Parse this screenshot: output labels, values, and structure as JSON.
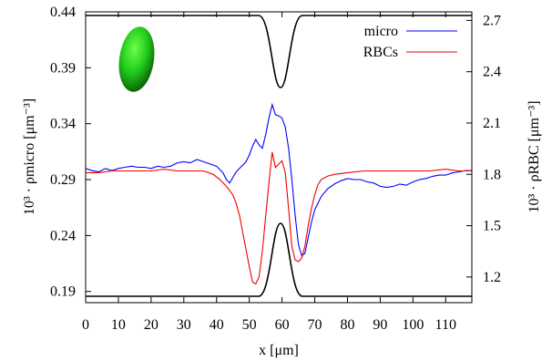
{
  "chart_data": {
    "type": "line",
    "xlabel": "x [μm]",
    "ylabel_left": "10³ · ρmicro [μm⁻³]",
    "ylabel_right": "10³ · ρRBC [μm⁻³]",
    "xlim": [
      0,
      118
    ],
    "ylim_left": [
      0.18,
      0.44
    ],
    "ylim_right": [
      1.05,
      2.75
    ],
    "x_ticks": [
      "0",
      "10",
      "20",
      "30",
      "40",
      "50",
      "60",
      "70",
      "80",
      "90",
      "100",
      "110"
    ],
    "x_tick_values": [
      0,
      10,
      20,
      30,
      40,
      50,
      60,
      70,
      80,
      90,
      100,
      110
    ],
    "y_left_ticks": [
      "0.19",
      "0.24",
      "0.29",
      "0.34",
      "0.39",
      "0.44"
    ],
    "y_left_tick_values": [
      0.19,
      0.24,
      0.29,
      0.34,
      0.39,
      0.44
    ],
    "y_right_ticks": [
      "1.2",
      "1.5",
      "1.8",
      "2.1",
      "2.4",
      "2.7"
    ],
    "y_right_tick_values": [
      1.2,
      1.5,
      1.8,
      2.1,
      2.4,
      2.7
    ],
    "legend_position": "top-right",
    "series": [
      {
        "name": "micro",
        "color": "#0000ff",
        "axis": "left",
        "points": [
          [
            0,
            0.3
          ],
          [
            2,
            0.298
          ],
          [
            4,
            0.297
          ],
          [
            6,
            0.3
          ],
          [
            8,
            0.298
          ],
          [
            10,
            0.3
          ],
          [
            12,
            0.301
          ],
          [
            14,
            0.302
          ],
          [
            16,
            0.301
          ],
          [
            18,
            0.301
          ],
          [
            20,
            0.3
          ],
          [
            22,
            0.302
          ],
          [
            24,
            0.301
          ],
          [
            26,
            0.302
          ],
          [
            28,
            0.305
          ],
          [
            30,
            0.306
          ],
          [
            32,
            0.305
          ],
          [
            34,
            0.308
          ],
          [
            36,
            0.306
          ],
          [
            38,
            0.304
          ],
          [
            40,
            0.302
          ],
          [
            42,
            0.296
          ],
          [
            43,
            0.29
          ],
          [
            44,
            0.287
          ],
          [
            45,
            0.292
          ],
          [
            46,
            0.297
          ],
          [
            47,
            0.3
          ],
          [
            48,
            0.303
          ],
          [
            49,
            0.306
          ],
          [
            50,
            0.312
          ],
          [
            51,
            0.32
          ],
          [
            52,
            0.326
          ],
          [
            53,
            0.321
          ],
          [
            54,
            0.318
          ],
          [
            55,
            0.33
          ],
          [
            56,
            0.345
          ],
          [
            57,
            0.357
          ],
          [
            58,
            0.348
          ],
          [
            59,
            0.347
          ],
          [
            60,
            0.345
          ],
          [
            61,
            0.337
          ],
          [
            62,
            0.318
          ],
          [
            63,
            0.29
          ],
          [
            64,
            0.258
          ],
          [
            65,
            0.232
          ],
          [
            66,
            0.222
          ],
          [
            67,
            0.224
          ],
          [
            68,
            0.238
          ],
          [
            69,
            0.252
          ],
          [
            70,
            0.263
          ],
          [
            72,
            0.275
          ],
          [
            74,
            0.282
          ],
          [
            76,
            0.286
          ],
          [
            78,
            0.289
          ],
          [
            80,
            0.291
          ],
          [
            82,
            0.29
          ],
          [
            84,
            0.29
          ],
          [
            86,
            0.288
          ],
          [
            88,
            0.287
          ],
          [
            90,
            0.284
          ],
          [
            92,
            0.283
          ],
          [
            94,
            0.284
          ],
          [
            96,
            0.286
          ],
          [
            98,
            0.285
          ],
          [
            100,
            0.288
          ],
          [
            102,
            0.29
          ],
          [
            104,
            0.291
          ],
          [
            106,
            0.293
          ],
          [
            108,
            0.294
          ],
          [
            110,
            0.294
          ],
          [
            112,
            0.296
          ],
          [
            114,
            0.297
          ],
          [
            116,
            0.298
          ],
          [
            118,
            0.298
          ]
        ]
      },
      {
        "name": "RBCs",
        "color": "#ee0000",
        "axis": "right",
        "points": [
          [
            0,
            1.81
          ],
          [
            4,
            1.81
          ],
          [
            8,
            1.82
          ],
          [
            12,
            1.82
          ],
          [
            16,
            1.82
          ],
          [
            20,
            1.82
          ],
          [
            24,
            1.83
          ],
          [
            28,
            1.82
          ],
          [
            32,
            1.82
          ],
          [
            36,
            1.82
          ],
          [
            39,
            1.8
          ],
          [
            41,
            1.77
          ],
          [
            43,
            1.73
          ],
          [
            45,
            1.68
          ],
          [
            46,
            1.63
          ],
          [
            47,
            1.56
          ],
          [
            48,
            1.46
          ],
          [
            49,
            1.36
          ],
          [
            50,
            1.26
          ],
          [
            51,
            1.17
          ],
          [
            52,
            1.16
          ],
          [
            53,
            1.2
          ],
          [
            54,
            1.35
          ],
          [
            55,
            1.55
          ],
          [
            56,
            1.75
          ],
          [
            57,
            1.93
          ],
          [
            58,
            1.84
          ],
          [
            59,
            1.86
          ],
          [
            60,
            1.88
          ],
          [
            61,
            1.81
          ],
          [
            62,
            1.6
          ],
          [
            63,
            1.38
          ],
          [
            64,
            1.3
          ],
          [
            65,
            1.29
          ],
          [
            66,
            1.31
          ],
          [
            67,
            1.38
          ],
          [
            68,
            1.5
          ],
          [
            69,
            1.6
          ],
          [
            70,
            1.68
          ],
          [
            71,
            1.74
          ],
          [
            72,
            1.77
          ],
          [
            74,
            1.79
          ],
          [
            76,
            1.8
          ],
          [
            80,
            1.81
          ],
          [
            85,
            1.82
          ],
          [
            90,
            1.82
          ],
          [
            95,
            1.82
          ],
          [
            100,
            1.82
          ],
          [
            105,
            1.82
          ],
          [
            110,
            1.83
          ],
          [
            114,
            1.82
          ],
          [
            118,
            1.82
          ]
        ]
      }
    ]
  }
}
